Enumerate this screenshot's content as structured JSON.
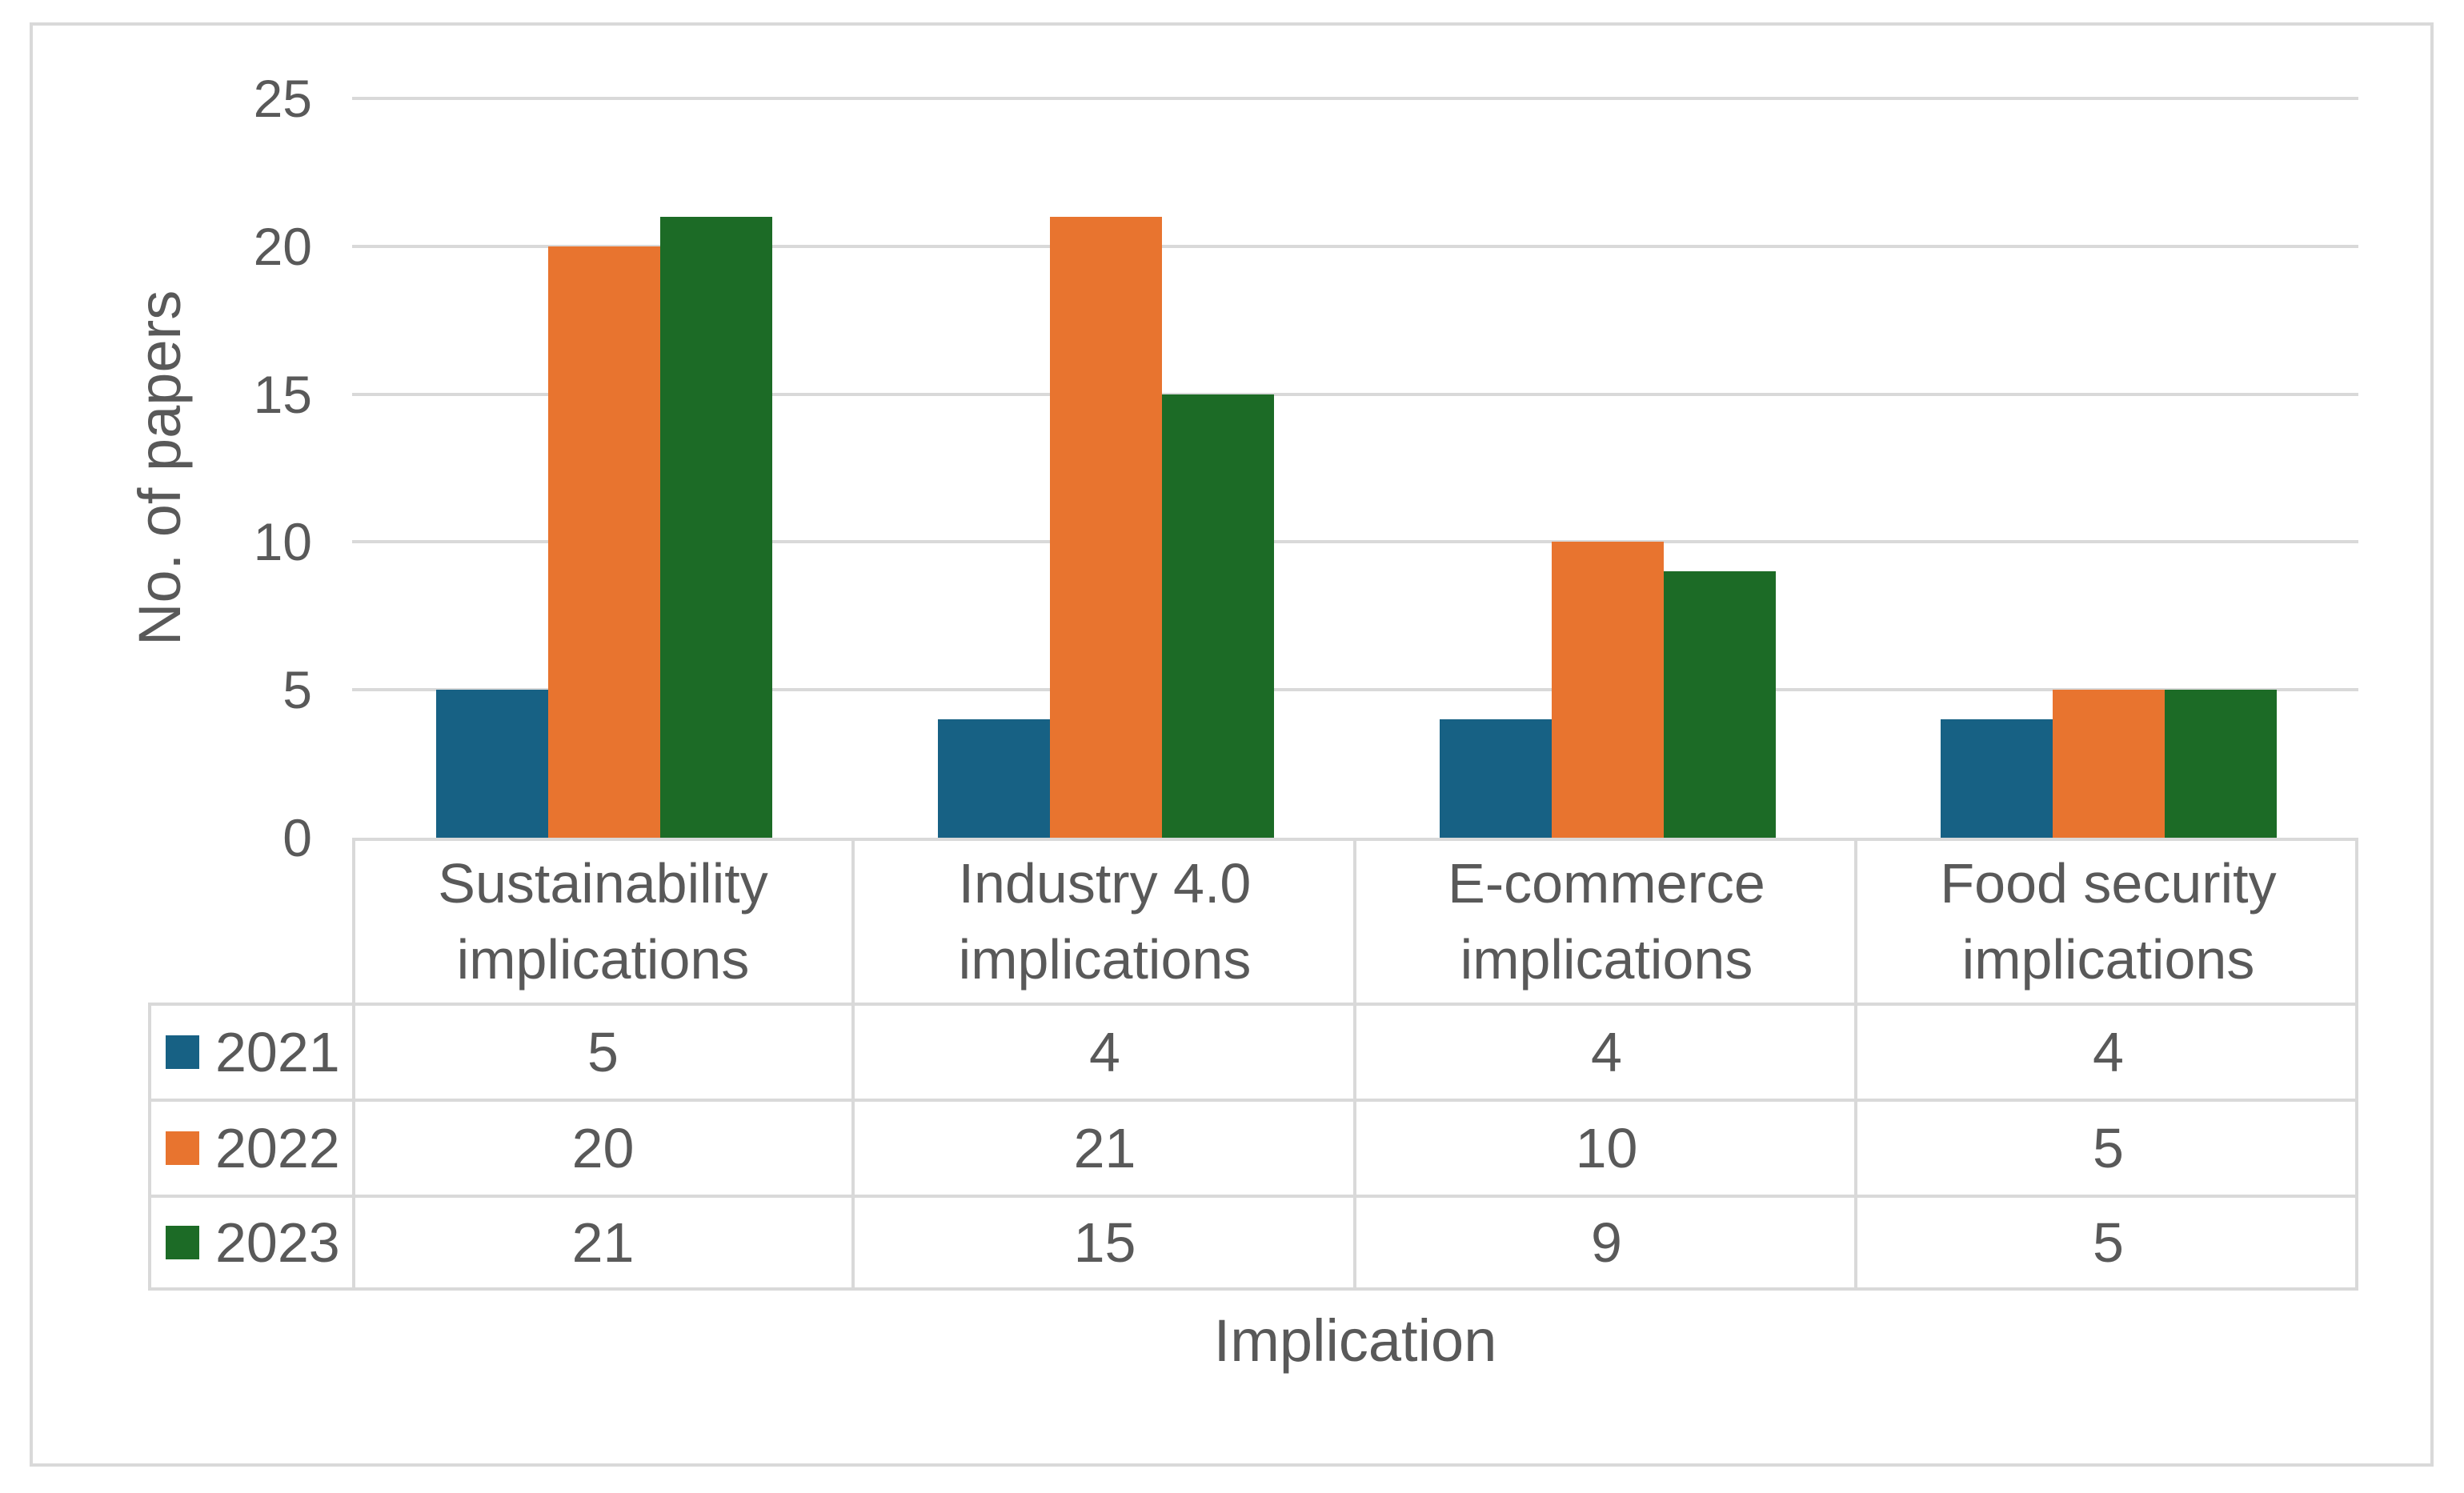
{
  "chart_data": {
    "type": "bar",
    "categories": [
      "Sustainability implications",
      "Industry 4.0 implications",
      "E-commerce implications",
      "Food security implications"
    ],
    "series": [
      {
        "name": "2021",
        "color": "#176184",
        "values": [
          5,
          4,
          4,
          4
        ]
      },
      {
        "name": "2022",
        "color": "#E8742F",
        "values": [
          20,
          21,
          10,
          5
        ]
      },
      {
        "name": "2023",
        "color": "#1C6B26",
        "values": [
          21,
          15,
          9,
          5
        ]
      }
    ],
    "title": "",
    "xlabel": "Implication",
    "ylabel": "No. of papers",
    "ylim": [
      0,
      25
    ],
    "yticks": [
      0,
      5,
      10,
      15,
      20,
      25
    ],
    "grid": true,
    "legend_position": "data-table-left",
    "data_table_shown": true
  },
  "colors": {
    "series_2021": "#176184",
    "series_2022": "#E8742F",
    "series_2023": "#1C6B26",
    "gridline": "#D9D9D9",
    "border": "#D9D9D9",
    "text": "#595959",
    "background": "#FFFFFF"
  }
}
